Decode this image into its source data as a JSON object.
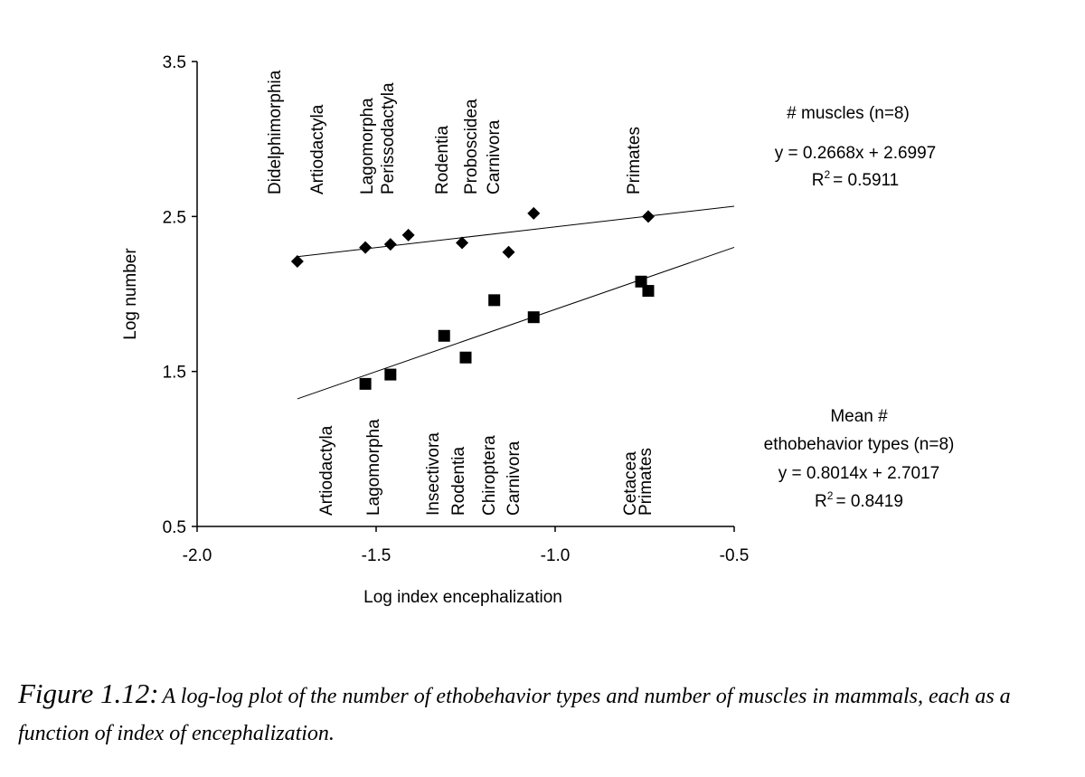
{
  "chart_data": {
    "type": "scatter",
    "xlabel": "Log index encephalization",
    "ylabel": "Log number",
    "xlim": [
      -2.0,
      -0.5
    ],
    "ylim": [
      0.5,
      3.5
    ],
    "xticks": [
      "-2.0",
      "-1.5",
      "-1.0",
      "-0.5"
    ],
    "yticks": [
      "0.5",
      "1.5",
      "2.5",
      "3.5"
    ],
    "series": [
      {
        "name": "# muscles (n=8)",
        "marker": "diamond",
        "color": "#000000",
        "points": [
          {
            "x": -1.72,
            "y": 2.21
          },
          {
            "x": -1.53,
            "y": 2.3
          },
          {
            "x": -1.46,
            "y": 2.32
          },
          {
            "x": -1.41,
            "y": 2.38
          },
          {
            "x": -1.26,
            "y": 2.33
          },
          {
            "x": -1.13,
            "y": 2.27
          },
          {
            "x": -1.06,
            "y": 2.52
          },
          {
            "x": -0.74,
            "y": 2.5
          }
        ],
        "fit": {
          "slope": 0.2668,
          "intercept": 2.6997,
          "x_range": [
            -1.72,
            -0.5
          ]
        },
        "equation": "y = 0.2668x + 2.6997",
        "r2_label": "R",
        "r2_value": "= 0.5911",
        "taxa": [
          "Didelphimorphia",
          "Artiodactyla",
          "Lagomorpha",
          "Perissodactyla",
          "Rodentia",
          "Proboscidea",
          "Carnivora",
          "Primates"
        ]
      },
      {
        "name_line1": "Mean #",
        "name_line2": "ethobehavior types (n=8)",
        "marker": "square",
        "color": "#000000",
        "points": [
          {
            "x": -1.53,
            "y": 1.42
          },
          {
            "x": -1.46,
            "y": 1.48
          },
          {
            "x": -1.31,
            "y": 1.73
          },
          {
            "x": -1.25,
            "y": 1.59
          },
          {
            "x": -1.17,
            "y": 1.96
          },
          {
            "x": -1.06,
            "y": 1.85
          },
          {
            "x": -0.76,
            "y": 2.08
          },
          {
            "x": -0.74,
            "y": 2.02
          }
        ],
        "fit": {
          "slope": 0.8014,
          "intercept": 2.7017,
          "x_range": [
            -1.72,
            -0.5
          ]
        },
        "equation": "y = 0.8014x + 2.7017",
        "r2_label": "R",
        "r2_value": "= 0.8419",
        "taxa": [
          "Artiodactyla",
          "Lagomorpha",
          "Insectivora",
          "Rodentia",
          "Chiroptera",
          "Carnivora",
          "Cetacea",
          "Primates"
        ]
      }
    ],
    "r2_superscript": "2"
  },
  "caption": {
    "lead": "Figure 1.12:",
    "body": "A log-log plot of the number of ethobehavior types and number of muscles in mammals, each as a function of index of encephalization."
  }
}
